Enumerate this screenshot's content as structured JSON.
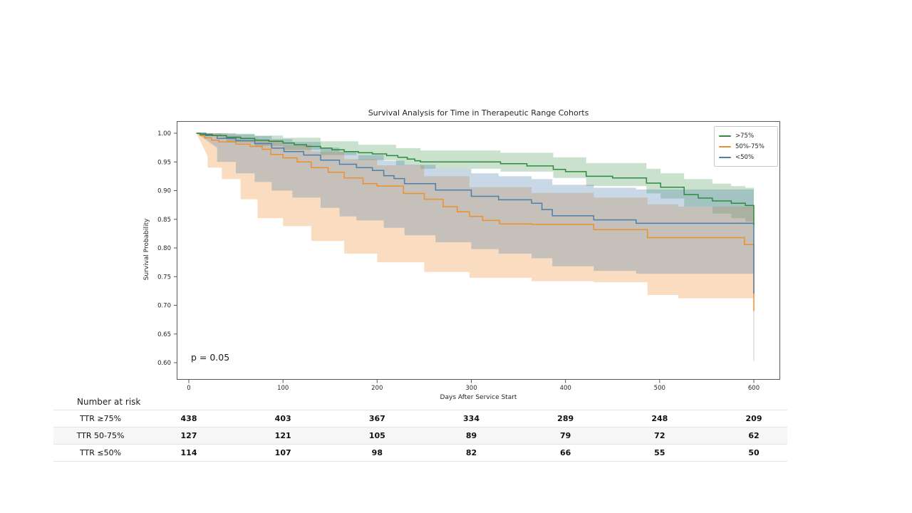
{
  "chart_data": {
    "type": "line",
    "subtype": "kaplan_meier_step_curves_with_confidence_bands",
    "title": "Survival Analysis for Time in Therapeutic Range Cohorts",
    "xlabel": "Days After Service Start",
    "ylabel": "Survival Probability",
    "annotation": "p = 0.05",
    "xlim": [
      -13,
      628
    ],
    "ylim": [
      0.57,
      1.02
    ],
    "xticks": [
      0,
      100,
      200,
      300,
      400,
      500,
      600
    ],
    "yticks": [
      0.6,
      0.65,
      0.7,
      0.75,
      0.8,
      0.85,
      0.9,
      0.95,
      1.0
    ],
    "grid": false,
    "legend_position": "upper right",
    "series": [
      {
        "name": ">75%",
        "color": "#2e8b3d",
        "steps": [
          [
            8,
            1.0
          ],
          [
            12,
            0.998
          ],
          [
            25,
            0.996
          ],
          [
            40,
            0.993
          ],
          [
            55,
            0.991
          ],
          [
            70,
            0.988
          ],
          [
            85,
            0.986
          ],
          [
            100,
            0.983
          ],
          [
            112,
            0.98
          ],
          [
            125,
            0.977
          ],
          [
            140,
            0.974
          ],
          [
            152,
            0.971
          ],
          [
            165,
            0.968
          ],
          [
            180,
            0.966
          ],
          [
            195,
            0.964
          ],
          [
            210,
            0.961
          ],
          [
            222,
            0.958
          ],
          [
            232,
            0.955
          ],
          [
            240,
            0.952
          ],
          [
            246,
            0.95
          ],
          [
            331,
            0.947
          ],
          [
            359,
            0.943
          ],
          [
            387,
            0.937
          ],
          [
            400,
            0.933
          ],
          [
            422,
            0.925
          ],
          [
            450,
            0.922
          ],
          [
            486,
            0.913
          ],
          [
            501,
            0.906
          ],
          [
            526,
            0.893
          ],
          [
            541,
            0.887
          ],
          [
            556,
            0.882
          ],
          [
            576,
            0.878
          ],
          [
            591,
            0.874
          ],
          [
            600,
            0.874
          ]
        ],
        "end_drop_to": 0.84,
        "ci": [
          [
            8,
            0.992,
            1.0
          ],
          [
            40,
            0.984,
            0.999
          ],
          [
            70,
            0.978,
            0.996
          ],
          [
            100,
            0.971,
            0.992
          ],
          [
            140,
            0.962,
            0.986
          ],
          [
            180,
            0.953,
            0.98
          ],
          [
            220,
            0.944,
            0.974
          ],
          [
            246,
            0.938,
            0.97
          ],
          [
            331,
            0.933,
            0.966
          ],
          [
            387,
            0.922,
            0.958
          ],
          [
            422,
            0.908,
            0.948
          ],
          [
            486,
            0.895,
            0.938
          ],
          [
            501,
            0.886,
            0.93
          ],
          [
            526,
            0.872,
            0.92
          ],
          [
            556,
            0.86,
            0.912
          ],
          [
            576,
            0.852,
            0.908
          ],
          [
            591,
            0.846,
            0.905
          ],
          [
            600,
            0.843,
            0.903
          ]
        ]
      },
      {
        "name": "50%-75%",
        "color": "#ee8f2d",
        "steps": [
          [
            8,
            1.0
          ],
          [
            12,
            0.996
          ],
          [
            17,
            0.992
          ],
          [
            24,
            0.988
          ],
          [
            32,
            0.985
          ],
          [
            50,
            0.981
          ],
          [
            65,
            0.977
          ],
          [
            78,
            0.972
          ],
          [
            87,
            0.963
          ],
          [
            100,
            0.957
          ],
          [
            115,
            0.95
          ],
          [
            130,
            0.94
          ],
          [
            148,
            0.932
          ],
          [
            165,
            0.922
          ],
          [
            185,
            0.912
          ],
          [
            200,
            0.908
          ],
          [
            228,
            0.895
          ],
          [
            250,
            0.885
          ],
          [
            270,
            0.872
          ],
          [
            285,
            0.863
          ],
          [
            298,
            0.855
          ],
          [
            312,
            0.848
          ],
          [
            330,
            0.842
          ],
          [
            364,
            0.841
          ],
          [
            430,
            0.832
          ],
          [
            487,
            0.818
          ],
          [
            590,
            0.806
          ],
          [
            600,
            0.806
          ]
        ],
        "end_drop_to": 0.69,
        "ci": [
          [
            8,
            0.96,
            1.0
          ],
          [
            20,
            0.94,
            1.0
          ],
          [
            35,
            0.92,
            0.996
          ],
          [
            55,
            0.885,
            0.992
          ],
          [
            73,
            0.852,
            0.988
          ],
          [
            100,
            0.838,
            0.98
          ],
          [
            130,
            0.812,
            0.968
          ],
          [
            165,
            0.79,
            0.955
          ],
          [
            200,
            0.775,
            0.944
          ],
          [
            250,
            0.758,
            0.925
          ],
          [
            298,
            0.748,
            0.906
          ],
          [
            364,
            0.742,
            0.896
          ],
          [
            430,
            0.74,
            0.888
          ],
          [
            487,
            0.718,
            0.876
          ],
          [
            520,
            0.712,
            0.872
          ],
          [
            600,
            0.708,
            0.866
          ]
        ]
      },
      {
        "name": "<50%",
        "color": "#4d7fad",
        "steps": [
          [
            8,
            1.0
          ],
          [
            18,
            0.996
          ],
          [
            30,
            0.991
          ],
          [
            50,
            0.987
          ],
          [
            70,
            0.982
          ],
          [
            88,
            0.974
          ],
          [
            101,
            0.968
          ],
          [
            122,
            0.962
          ],
          [
            140,
            0.953
          ],
          [
            160,
            0.946
          ],
          [
            178,
            0.94
          ],
          [
            195,
            0.935
          ],
          [
            207,
            0.926
          ],
          [
            218,
            0.921
          ],
          [
            229,
            0.912
          ],
          [
            262,
            0.901
          ],
          [
            300,
            0.89
          ],
          [
            329,
            0.884
          ],
          [
            364,
            0.878
          ],
          [
            375,
            0.867
          ],
          [
            386,
            0.856
          ],
          [
            430,
            0.849
          ],
          [
            475,
            0.843
          ],
          [
            600,
            0.843
          ]
        ],
        "end_drop_to": 0.72,
        "ci": [
          [
            8,
            0.975,
            1.0
          ],
          [
            30,
            0.95,
            1.0
          ],
          [
            50,
            0.93,
            0.998
          ],
          [
            70,
            0.915,
            0.995
          ],
          [
            88,
            0.9,
            0.99
          ],
          [
            110,
            0.888,
            0.985
          ],
          [
            140,
            0.87,
            0.975
          ],
          [
            160,
            0.855,
            0.968
          ],
          [
            178,
            0.848,
            0.962
          ],
          [
            207,
            0.835,
            0.952
          ],
          [
            229,
            0.822,
            0.945
          ],
          [
            262,
            0.81,
            0.938
          ],
          [
            300,
            0.798,
            0.93
          ],
          [
            329,
            0.79,
            0.925
          ],
          [
            364,
            0.782,
            0.92
          ],
          [
            386,
            0.768,
            0.91
          ],
          [
            430,
            0.76,
            0.905
          ],
          [
            475,
            0.755,
            0.902
          ],
          [
            600,
            0.752,
            0.9
          ]
        ]
      }
    ],
    "censor_tail": {
      "x_day": 600,
      "from": 0.72,
      "to": 0.603,
      "color": "#c9c9c9"
    }
  },
  "risk_table": {
    "header": "Number at risk",
    "time_points": [
      0,
      100,
      200,
      300,
      400,
      500,
      600
    ],
    "rows": [
      {
        "label": "TTR ≥75%",
        "values": [
          "438",
          "403",
          "367",
          "334",
          "289",
          "248",
          "209"
        ]
      },
      {
        "label": "TTR 50-75%",
        "values": [
          "127",
          "121",
          "105",
          "89",
          "79",
          "72",
          "62"
        ]
      },
      {
        "label": "TTR ≤50%",
        "values": [
          "114",
          "107",
          "98",
          "82",
          "66",
          "55",
          "50"
        ]
      }
    ]
  }
}
